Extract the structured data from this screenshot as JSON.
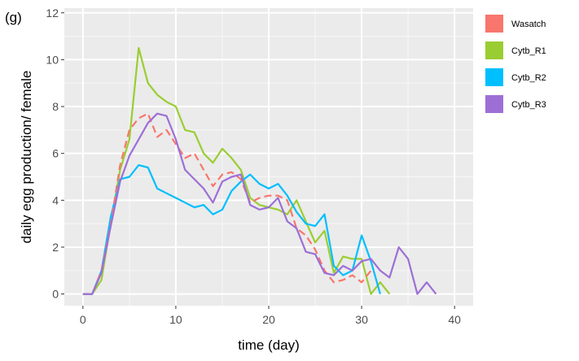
{
  "panel_label": "(g)",
  "chart_data": {
    "type": "line",
    "title": "",
    "xlabel": "time (day)",
    "ylabel": "daily egg production/ female",
    "xlim": [
      -2,
      42
    ],
    "ylim": [
      -0.5,
      12.2
    ],
    "xticks": [
      0,
      10,
      20,
      30,
      40
    ],
    "yticks": [
      0,
      2,
      4,
      6,
      8,
      10,
      12
    ],
    "grid": true,
    "legend_position": "right",
    "panel_background": "#ebebeb",
    "series": [
      {
        "name": "Wasatch",
        "color": "#f8766d",
        "dash": true,
        "x": [
          0,
          1,
          2,
          3,
          4,
          5,
          6,
          7,
          8,
          9,
          10,
          11,
          12,
          13,
          14,
          15,
          16,
          17,
          18,
          19,
          20,
          21,
          22,
          23,
          24,
          25,
          26,
          27,
          28,
          29,
          30,
          31
        ],
        "y": [
          0,
          0,
          1,
          3,
          5.5,
          7,
          7.5,
          7.7,
          6.7,
          7,
          6.4,
          5.8,
          6,
          5.3,
          4.6,
          5.1,
          5.2,
          4.9,
          3.9,
          4.1,
          4.2,
          4.2,
          4.0,
          2.8,
          2.5,
          1.9,
          1.0,
          0.5,
          0.6,
          0.8,
          0.5,
          1.0
        ]
      },
      {
        "name": "Cytb_R1",
        "color": "#9acd32",
        "dash": false,
        "x": [
          0,
          1,
          2,
          3,
          4,
          5,
          6,
          7,
          8,
          9,
          10,
          11,
          12,
          13,
          14,
          15,
          16,
          17,
          18,
          19,
          20,
          21,
          22,
          23,
          24,
          25,
          26,
          27,
          28,
          29,
          30,
          31,
          32,
          33
        ],
        "y": [
          0,
          0,
          0.6,
          3.0,
          5.3,
          6.6,
          10.5,
          9.0,
          8.5,
          8.2,
          8.0,
          7.0,
          6.9,
          6.0,
          5.6,
          6.2,
          5.8,
          5.3,
          4.1,
          3.8,
          3.7,
          3.6,
          3.4,
          4.0,
          3.1,
          2.2,
          2.7,
          0.9,
          1.6,
          1.5,
          1.5,
          0.0,
          0.5,
          0.0
        ]
      },
      {
        "name": "Cytb_R2",
        "color": "#00bfff",
        "dash": false,
        "x": [
          0,
          1,
          2,
          3,
          4,
          5,
          6,
          7,
          8,
          9,
          10,
          11,
          12,
          13,
          14,
          15,
          16,
          17,
          18,
          19,
          20,
          21,
          22,
          23,
          24,
          25,
          26,
          27,
          28,
          29,
          30,
          31,
          32
        ],
        "y": [
          0,
          0,
          1.0,
          3.3,
          4.9,
          5.0,
          5.5,
          5.4,
          4.5,
          4.3,
          4.1,
          3.9,
          3.7,
          3.8,
          3.4,
          3.6,
          4.4,
          4.8,
          5.1,
          4.7,
          4.5,
          4.7,
          4.2,
          3.5,
          3.0,
          2.9,
          3.4,
          1.2,
          0.8,
          1.0,
          2.5,
          1.4,
          0.0
        ]
      },
      {
        "name": "Cytb_R3",
        "color": "#9d6fd6",
        "dash": false,
        "x": [
          0,
          1,
          2,
          3,
          4,
          5,
          6,
          7,
          8,
          9,
          10,
          11,
          12,
          13,
          14,
          15,
          16,
          17,
          18,
          19,
          20,
          21,
          22,
          23,
          24,
          25,
          26,
          27,
          28,
          29,
          30,
          31,
          32,
          33,
          34,
          35,
          36,
          37,
          38
        ],
        "y": [
          0,
          0,
          0.9,
          2.9,
          4.8,
          5.9,
          6.6,
          7.3,
          7.7,
          7.6,
          6.6,
          5.3,
          4.9,
          4.5,
          3.9,
          4.8,
          5.0,
          5.1,
          3.8,
          3.6,
          3.7,
          4.1,
          3.1,
          2.8,
          1.8,
          1.7,
          0.9,
          0.8,
          1.2,
          1.0,
          1.4,
          1.5,
          1.0,
          0.7,
          2.0,
          1.5,
          0.0,
          0.5,
          0.0
        ]
      }
    ]
  }
}
